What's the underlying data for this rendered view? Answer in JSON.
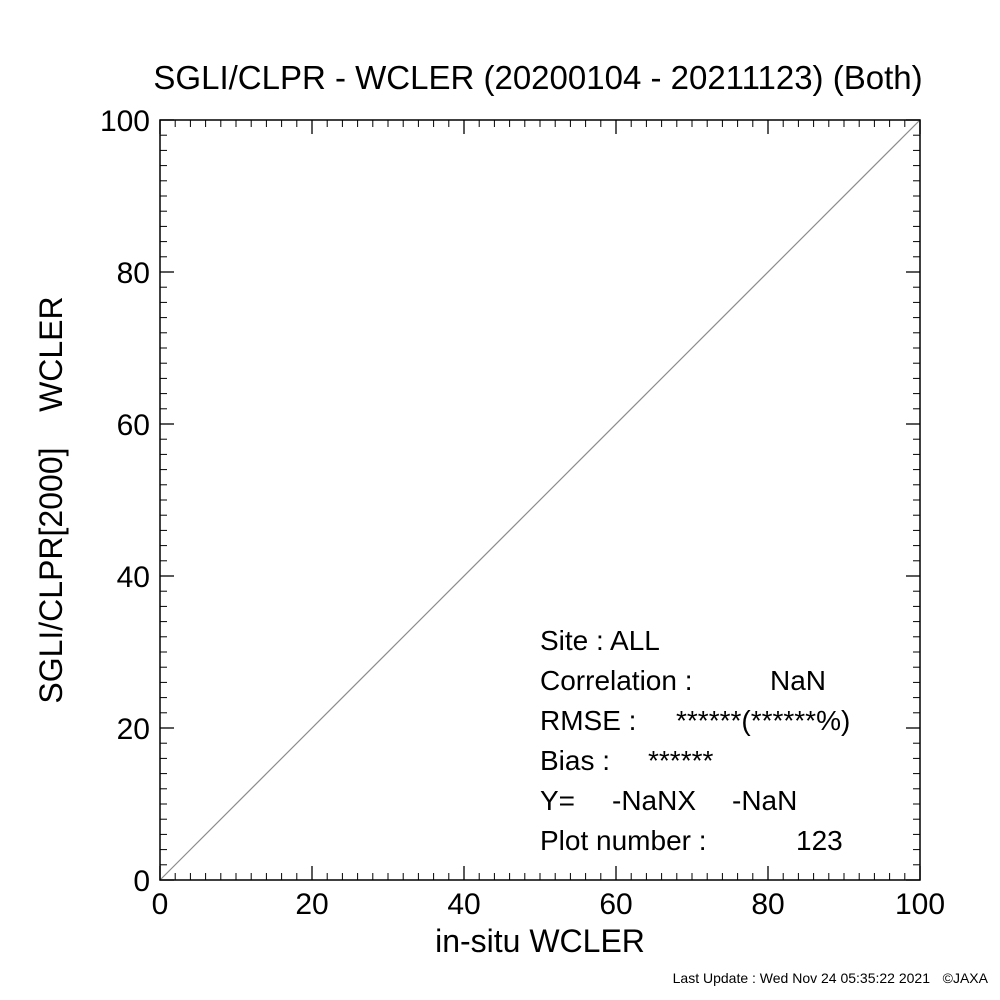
{
  "chart_data": {
    "type": "scatter",
    "title": "SGLI/CLPR - WCLER (20200104 - 20211123) (Both)",
    "xlabel": "in-situ WCLER",
    "ylabel": "SGLI/CLPR[2000]    WCLER",
    "xlim": [
      0,
      100
    ],
    "ylim": [
      0,
      100
    ],
    "x_ticks": [
      "0",
      "20",
      "40",
      "60",
      "80",
      "100"
    ],
    "y_ticks": [
      "0",
      "20",
      "40",
      "60",
      "80",
      "100"
    ],
    "grid": false,
    "reference_line": {
      "x": [
        0,
        100
      ],
      "y": [
        0,
        100
      ]
    },
    "series": [
      {
        "x": [],
        "y": []
      }
    ],
    "annotations": {
      "site_label": "Site : ALL",
      "correlation_label": "Correlation :",
      "correlation_value": "NaN",
      "rmse_label": "RMSE :",
      "rmse_value": "******(******%)",
      "bias_label": "Bias :",
      "bias_value": "******",
      "regression_label": "Y=",
      "regression_slope": "-NaNX",
      "regression_intercept": "-NaN",
      "plot_number_label": "Plot number :",
      "plot_number_value": "123"
    }
  },
  "footer": {
    "last_update": "Last Update : Wed Nov 24 05:35:22 2021",
    "copyright": "©JAXA"
  }
}
